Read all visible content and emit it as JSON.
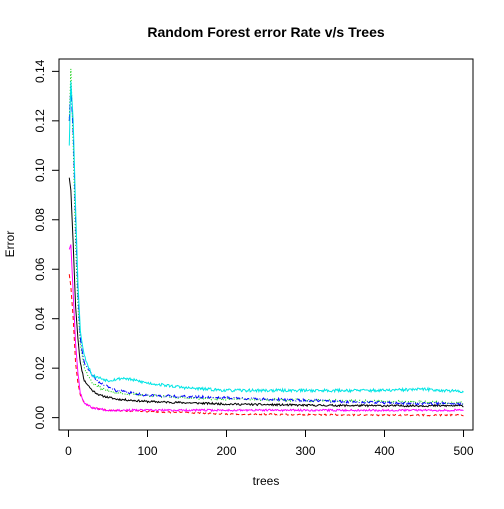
{
  "chart_data": {
    "type": "line",
    "title": "Random Forest error Rate v/s Trees",
    "xlabel": "trees",
    "ylabel": "Error",
    "xlim": [
      -12,
      512
    ],
    "ylim": [
      -0.005,
      0.145
    ],
    "x_ticks": [
      0,
      100,
      200,
      300,
      400,
      500
    ],
    "x_tick_labels": [
      "0",
      "100",
      "200",
      "300",
      "400",
      "500"
    ],
    "y_ticks": [
      0.0,
      0.02,
      0.04,
      0.06,
      0.08,
      0.1,
      0.12,
      0.14
    ],
    "y_tick_labels": [
      "0.00",
      "0.02",
      "0.04",
      "0.06",
      "0.08",
      "0.10",
      "0.12",
      "0.14"
    ],
    "grid": false,
    "legend": "none",
    "series": [
      {
        "color": "#000000",
        "dash": "solid",
        "noise": 0.0004,
        "seed": 11,
        "points": [
          [
            1,
            0.097
          ],
          [
            3,
            0.092
          ],
          [
            6,
            0.07
          ],
          [
            9,
            0.045
          ],
          [
            12,
            0.032
          ],
          [
            15,
            0.022
          ],
          [
            20,
            0.015
          ],
          [
            30,
            0.011
          ],
          [
            40,
            0.009
          ],
          [
            60,
            0.0075
          ],
          [
            100,
            0.0065
          ],
          [
            150,
            0.006
          ],
          [
            200,
            0.0055
          ],
          [
            300,
            0.005
          ],
          [
            400,
            0.0048
          ],
          [
            500,
            0.0048
          ]
        ]
      },
      {
        "color": "#ff0000",
        "dash": "4,3",
        "noise": 0.0003,
        "seed": 23,
        "points": [
          [
            1,
            0.058
          ],
          [
            3,
            0.053
          ],
          [
            6,
            0.04
          ],
          [
            9,
            0.022
          ],
          [
            12,
            0.014
          ],
          [
            15,
            0.009
          ],
          [
            20,
            0.006
          ],
          [
            30,
            0.004
          ],
          [
            50,
            0.003
          ],
          [
            100,
            0.0025
          ],
          [
            150,
            0.002
          ],
          [
            200,
            0.0015
          ],
          [
            300,
            0.0012
          ],
          [
            400,
            0.001
          ],
          [
            500,
            0.001
          ]
        ]
      },
      {
        "color": "#00cd00",
        "dash": "1,2",
        "noise": 0.0005,
        "seed": 37,
        "points": [
          [
            1,
            0.12
          ],
          [
            3,
            0.141
          ],
          [
            6,
            0.11
          ],
          [
            9,
            0.07
          ],
          [
            12,
            0.045
          ],
          [
            15,
            0.03
          ],
          [
            20,
            0.02
          ],
          [
            30,
            0.014
          ],
          [
            40,
            0.012
          ],
          [
            60,
            0.01
          ],
          [
            100,
            0.009
          ],
          [
            150,
            0.008
          ],
          [
            200,
            0.0075
          ],
          [
            300,
            0.007
          ],
          [
            400,
            0.0065
          ],
          [
            500,
            0.006
          ]
        ]
      },
      {
        "color": "#0000ff",
        "dash": "6,2,1,2",
        "noise": 0.0005,
        "seed": 41,
        "points": [
          [
            1,
            0.12
          ],
          [
            3,
            0.134
          ],
          [
            6,
            0.115
          ],
          [
            9,
            0.08
          ],
          [
            12,
            0.05
          ],
          [
            15,
            0.032
          ],
          [
            20,
            0.022
          ],
          [
            30,
            0.017
          ],
          [
            40,
            0.014
          ],
          [
            60,
            0.011
          ],
          [
            100,
            0.009
          ],
          [
            150,
            0.0085
          ],
          [
            200,
            0.008
          ],
          [
            300,
            0.007
          ],
          [
            400,
            0.006
          ],
          [
            500,
            0.0055
          ]
        ]
      },
      {
        "color": "#00e5e5",
        "dash": "solid",
        "noise": 0.0006,
        "seed": 53,
        "points": [
          [
            1,
            0.11
          ],
          [
            3,
            0.136
          ],
          [
            6,
            0.12
          ],
          [
            9,
            0.085
          ],
          [
            12,
            0.055
          ],
          [
            15,
            0.035
          ],
          [
            20,
            0.025
          ],
          [
            30,
            0.017
          ],
          [
            50,
            0.015
          ],
          [
            70,
            0.016
          ],
          [
            100,
            0.014
          ],
          [
            150,
            0.012
          ],
          [
            200,
            0.011
          ],
          [
            300,
            0.011
          ],
          [
            400,
            0.011
          ],
          [
            450,
            0.0115
          ],
          [
            500,
            0.0105
          ]
        ]
      },
      {
        "color": "#ff00ff",
        "dash": "solid",
        "noise": 0.0004,
        "seed": 67,
        "points": [
          [
            1,
            0.068
          ],
          [
            3,
            0.07
          ],
          [
            6,
            0.05
          ],
          [
            9,
            0.03
          ],
          [
            12,
            0.018
          ],
          [
            15,
            0.01
          ],
          [
            20,
            0.006
          ],
          [
            30,
            0.004
          ],
          [
            50,
            0.003
          ],
          [
            100,
            0.003
          ],
          [
            200,
            0.003
          ],
          [
            300,
            0.003
          ],
          [
            400,
            0.003
          ],
          [
            500,
            0.003
          ]
        ]
      }
    ]
  }
}
